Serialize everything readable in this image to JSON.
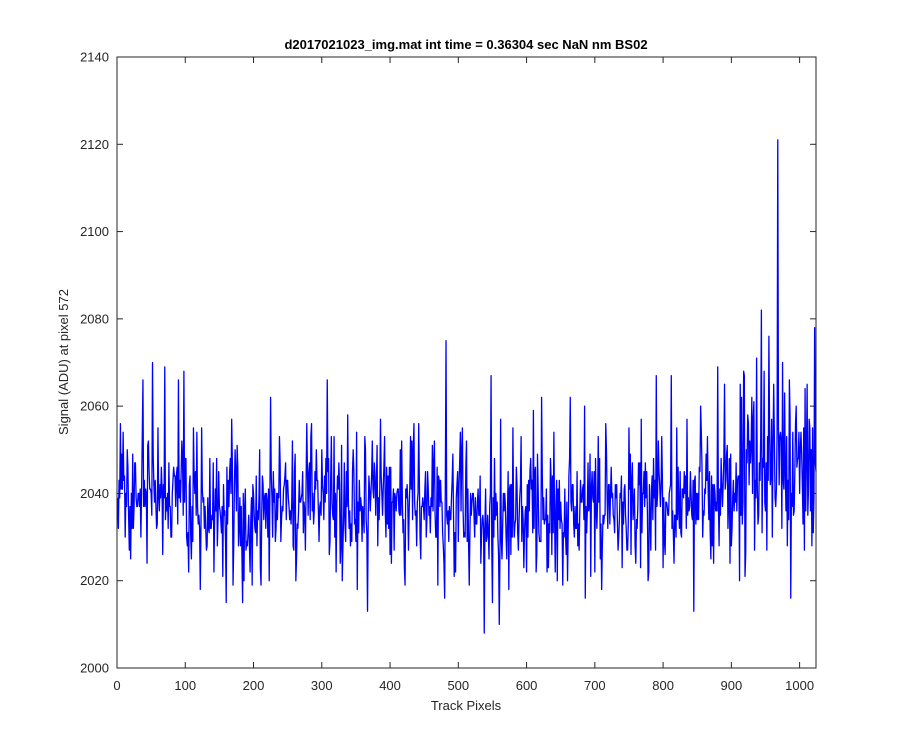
{
  "chart_data": {
    "type": "line",
    "title": "d2017021023_img.mat int time = 0.36304 sec  NaN nm BS02",
    "xlabel": "Track Pixels",
    "ylabel": "Signal (ADU) at pixel 572",
    "xlim": [
      0,
      1024
    ],
    "ylim": [
      2000,
      2140
    ],
    "xticks": [
      0,
      100,
      200,
      300,
      400,
      500,
      600,
      700,
      800,
      900,
      1000
    ],
    "yticks": [
      2000,
      2020,
      2040,
      2060,
      2080,
      2100,
      2120,
      2140
    ],
    "grid": false,
    "legend": "none",
    "box": true,
    "series": [
      {
        "color": "#0000ff",
        "x_start": 1,
        "x_step": 1,
        "baseline": [
          [
            0,
            2040
          ],
          [
            100,
            2041
          ],
          [
            150,
            2036
          ],
          [
            200,
            2037
          ],
          [
            300,
            2039
          ],
          [
            400,
            2038
          ],
          [
            450,
            2037
          ],
          [
            500,
            2036
          ],
          [
            540,
            2034
          ],
          [
            600,
            2037
          ],
          [
            700,
            2037
          ],
          [
            800,
            2038
          ],
          [
            850,
            2039
          ],
          [
            900,
            2041
          ],
          [
            940,
            2043
          ],
          [
            960,
            2046
          ],
          [
            990,
            2045
          ],
          [
            1024,
            2045
          ]
        ],
        "noise_sd": 7,
        "noise_sd_tail": 9,
        "peaks": [
          [
            5,
            2056
          ],
          [
            20,
            2051
          ],
          [
            38,
            2066
          ],
          [
            52,
            2070
          ],
          [
            70,
            2069
          ],
          [
            90,
            2066
          ],
          [
            98,
            2068
          ],
          [
            112,
            2055
          ],
          [
            122,
            2055
          ],
          [
            168,
            2057
          ],
          [
            225,
            2062
          ],
          [
            238,
            2053
          ],
          [
            285,
            2056
          ],
          [
            300,
            2050
          ],
          [
            308,
            2066
          ],
          [
            318,
            2053
          ],
          [
            338,
            2058
          ],
          [
            367,
            2068
          ],
          [
            386,
            2057
          ],
          [
            415,
            2050
          ],
          [
            435,
            2056
          ],
          [
            462,
            2051
          ],
          [
            482,
            2075
          ],
          [
            506,
            2055
          ],
          [
            548,
            2067
          ],
          [
            562,
            2057
          ],
          [
            580,
            2055
          ],
          [
            610,
            2059
          ],
          [
            622,
            2062
          ],
          [
            640,
            2054
          ],
          [
            664,
            2062
          ],
          [
            685,
            2060
          ],
          [
            705,
            2053
          ],
          [
            716,
            2056
          ],
          [
            750,
            2055
          ],
          [
            768,
            2057
          ],
          [
            790,
            2067
          ],
          [
            812,
            2067
          ],
          [
            820,
            2055
          ],
          [
            835,
            2057
          ],
          [
            845,
            2058
          ],
          [
            855,
            2060
          ],
          [
            880,
            2069
          ],
          [
            890,
            2065
          ],
          [
            900,
            2070
          ],
          [
            913,
            2065
          ],
          [
            918,
            2068
          ],
          [
            930,
            2062
          ],
          [
            937,
            2071
          ],
          [
            944,
            2082
          ],
          [
            948,
            2068
          ],
          [
            955,
            2076
          ],
          [
            962,
            2065
          ],
          [
            968,
            2121
          ],
          [
            975,
            2070
          ],
          [
            985,
            2066
          ],
          [
            995,
            2060
          ],
          [
            1008,
            2064
          ],
          [
            1022,
            2078
          ]
        ],
        "troughs": [
          [
            20,
            2025
          ],
          [
            44,
            2024
          ],
          [
            80,
            2030
          ],
          [
            102,
            2030
          ],
          [
            122,
            2018
          ],
          [
            142,
            2022
          ],
          [
            160,
            2015
          ],
          [
            170,
            2019
          ],
          [
            184,
            2015
          ],
          [
            210,
            2023
          ],
          [
            262,
            2020
          ],
          [
            330,
            2020
          ],
          [
            352,
            2018
          ],
          [
            367,
            2013
          ],
          [
            402,
            2024
          ],
          [
            445,
            2025
          ],
          [
            470,
            2019
          ],
          [
            480,
            2016
          ],
          [
            496,
            2022
          ],
          [
            516,
            2019
          ],
          [
            538,
            2008
          ],
          [
            550,
            2015
          ],
          [
            560,
            2010
          ],
          [
            574,
            2018
          ],
          [
            600,
            2022
          ],
          [
            630,
            2022
          ],
          [
            660,
            2020
          ],
          [
            686,
            2016
          ],
          [
            700,
            2022
          ],
          [
            710,
            2018
          ],
          [
            740,
            2023
          ],
          [
            760,
            2024
          ],
          [
            778,
            2020
          ],
          [
            800,
            2023
          ],
          [
            845,
            2013
          ],
          [
            870,
            2025
          ],
          [
            900,
            2028
          ],
          [
            934,
            2027
          ],
          [
            960,
            2030
          ],
          [
            1005,
            2033
          ],
          [
            1020,
            2031
          ]
        ]
      }
    ]
  }
}
